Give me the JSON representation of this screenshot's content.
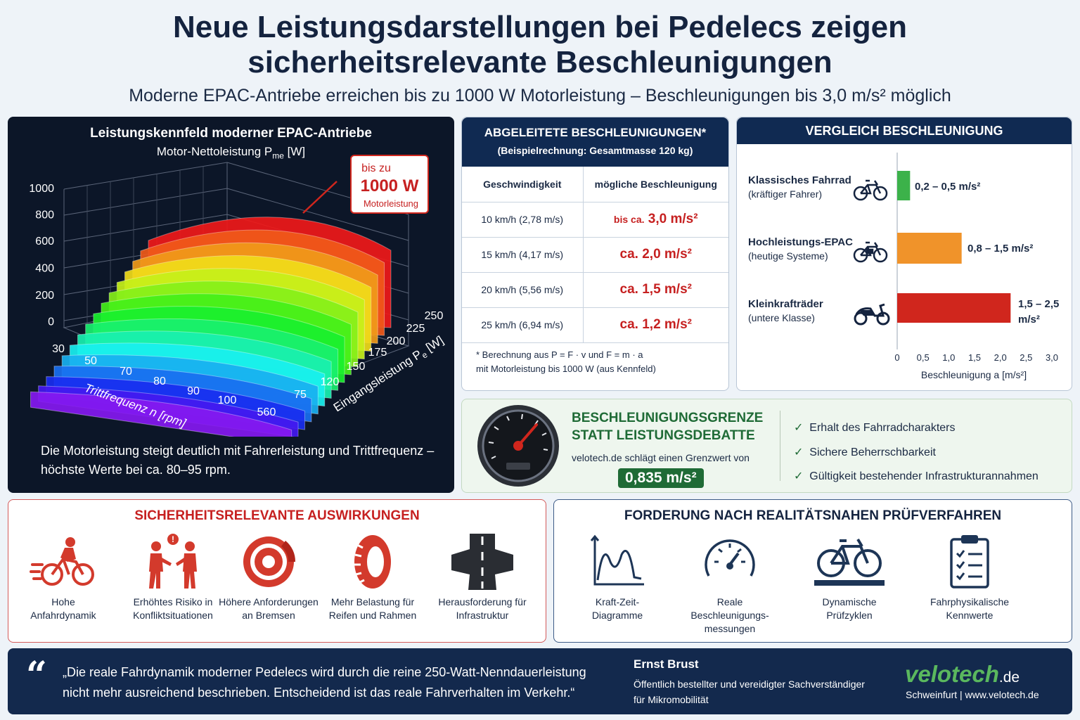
{
  "header": {
    "title_line1": "Neue Leistungsdarstellungen bei Pedelecs zeigen",
    "title_line2": "sicherheitsrelevante Beschleunigungen",
    "subtitle": "Moderne EPAC-Antriebe erreichen bis zu 1000 W Motorleistung – Beschleunigungen bis 3,0 m/s² möglich"
  },
  "kennfeld": {
    "title": "Leistungskennfeld moderner EPAC-Antriebe",
    "z_label": "Motor-Nettoleistung P",
    "z_label_sub": "me",
    "z_label_unit": " [W]",
    "z_ticks": [
      "1000",
      "800",
      "600",
      "400",
      "200",
      "0"
    ],
    "x_label": "Trittfrequenz n [rpm]",
    "x_ticks": [
      "30",
      "50",
      "70",
      "80",
      "90",
      "100"
    ],
    "y_label": "Eingangsleistung P",
    "y_label_sub": "e",
    "y_label_unit": " [W]",
    "y_ticks": [
      "560",
      "75",
      "120",
      "150",
      "175",
      "200",
      "225",
      "250"
    ],
    "callout_line1": "bis zu",
    "callout_value": "1000 W",
    "callout_line2": "Motorleistung",
    "caption": "Die Motorleistung steigt deutlich mit Fahrerleistung und Trittfrequenz – höchste Werte bei ca. 80–95 rpm."
  },
  "table": {
    "title": "ABGELEITETE BESCHLEUNIGUNGEN*",
    "subtitle": "(Beispielrechnung: Gesamtmasse 120 kg)",
    "col1": "Geschwindigkeit",
    "col2": "mögliche Beschleunigung",
    "rows": [
      {
        "speed": "10 km/h (2,78 m/s)",
        "prefix": "bis ca.",
        "value": "3,0 m/s²"
      },
      {
        "speed": "15 km/h (4,17 m/s)",
        "prefix": "ca.",
        "value": "2,0 m/s²"
      },
      {
        "speed": "20 km/h (5,56 m/s)",
        "prefix": "ca.",
        "value": "1,5 m/s²"
      },
      {
        "speed": "25 km/h (6,94 m/s)",
        "prefix": "ca.",
        "value": "1,2 m/s²"
      }
    ],
    "note_line1": "* Berechnung aus P = F · v und F = m · a",
    "note_line2": "mit Motorleistung bis 1000 W (aus Kennfeld)"
  },
  "vergleich": {
    "title": "VERGLEICH BESCHLEUNIGUNG",
    "xlabel": "Beschleunigung a [m/s²]",
    "ticks": [
      "0",
      "0,5",
      "1,0",
      "1,5",
      "2,0",
      "2,5",
      "3,0"
    ],
    "bars": [
      {
        "name": "Klassisches Fahrrad",
        "sub": "(kräftiger Fahrer)",
        "label": "0,2 – 0,5 m/s²",
        "min": 0,
        "max": 0.25,
        "color": "#3cb24a"
      },
      {
        "name": "Hochleistungs-EPAC",
        "sub": "(heutige Systeme)",
        "label": "0,8 – 1,5 m/s²",
        "min": 0,
        "max": 1.25,
        "color": "#f0932a"
      },
      {
        "name": "Kleinkrafträder",
        "sub": "(untere Klasse)",
        "label_line1": "1,5 – 2,5",
        "label_line2": "m/s²",
        "min": 0,
        "max": 2.2,
        "color": "#d0261d"
      }
    ]
  },
  "grenze": {
    "title_line1": "BESCHLEUNIGUNGSGRENZE",
    "title_line2": "STATT LEISTUNGSDEBATTE",
    "text": "velotech.de schlägt einen Grenzwert von",
    "value": "0,835 m/s²",
    "checks": [
      "Erhalt des Fahrradcharakters",
      "Sichere Beherrschbarkeit",
      "Gültigkeit bestehender Infrastrukturannahmen"
    ]
  },
  "safety": {
    "title": "SICHERHEITSRELEVANTE AUSWIRKUNGEN",
    "items": [
      {
        "l1": "Hohe",
        "l2": "Anfahrdynamik"
      },
      {
        "l1": "Erhöhtes Risiko in",
        "l2": "Konfliktsituationen"
      },
      {
        "l1": "Höhere Anforderungen",
        "l2": "an Bremsen"
      },
      {
        "l1": "Mehr Belastung für",
        "l2": "Reifen und Rahmen"
      },
      {
        "l1": "Herausforderung für",
        "l2": "Infrastruktur"
      }
    ]
  },
  "forderung": {
    "title": "FORDERUNG NACH REALITÄTSNAHEN PRÜFVERFAHREN",
    "items": [
      {
        "l1": "Kraft-Zeit-",
        "l2": "Diagramme",
        "l3": ""
      },
      {
        "l1": "Reale",
        "l2": "Beschleunigungs-",
        "l3": "messungen"
      },
      {
        "l1": "Dynamische",
        "l2": "Prüfzyklen",
        "l3": ""
      },
      {
        "l1": "Fahrphysikalische",
        "l2": "Kennwerte",
        "l3": ""
      }
    ]
  },
  "quote": {
    "line1": "„Die reale Fahrdynamik moderner Pedelecs wird durch die reine 250-Watt-Nenndauerleistung",
    "line2": "nicht mehr ausreichend beschrieben. Entscheidend ist das reale Fahrverhalten im Verkehr.“",
    "author": "Ernst Brust",
    "role1": "Öffentlich bestellter und vereidigter Sachverständiger",
    "role2": "für Mikromobilität",
    "logo_main": "velotech",
    "logo_tld": ".de",
    "logo_sub": "Schweinfurt | www.velotech.de"
  }
}
